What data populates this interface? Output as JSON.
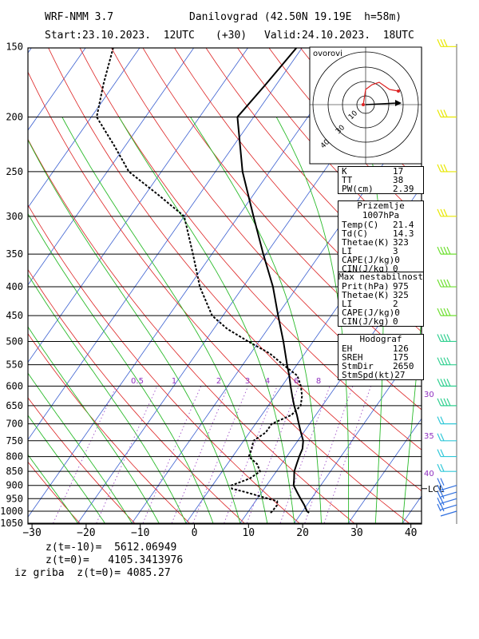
{
  "header": {
    "model": "WRF-NMM 3.7",
    "location": "Danilovgrad (42.50N 19.19E  h=58m)",
    "start": "Start:23.10.2023.  12UTC",
    "offset": "(+30)",
    "valid": "Valid:24.10.2023.  18UTC"
  },
  "hodograph_label": "ovorovi",
  "indices_box": {
    "rows": [
      [
        "K",
        "17"
      ],
      [
        "TT",
        "38"
      ],
      [
        "PW(cm)",
        "2.39"
      ]
    ]
  },
  "surface_box": {
    "title": "Prizemlje 1007hPa",
    "rows": [
      [
        "Temp(C)",
        "21.4"
      ],
      [
        "Td(C)",
        "14.3"
      ],
      [
        "Thetae(K)",
        "323"
      ],
      [
        "LI",
        "3"
      ],
      [
        "CAPE(J/kg)",
        "0"
      ],
      [
        "CIN(J/kg)",
        "0"
      ]
    ]
  },
  "unstable_box": {
    "title": "Max nestabilnost",
    "rows": [
      [
        "Prit(hPa)",
        "975"
      ],
      [
        "Thetae(K)",
        "325"
      ],
      [
        "LI",
        "2"
      ],
      [
        "CAPE(J/kg)",
        "0"
      ],
      [
        "CIN(J/kg)",
        "0"
      ]
    ]
  },
  "hodo_box": {
    "title": "Hodograf",
    "rows": [
      [
        "EH",
        "126"
      ],
      [
        "SREH",
        "175"
      ],
      [
        "StmDir",
        "2650"
      ],
      [
        "StmSpd(kt)",
        "27"
      ]
    ]
  },
  "footer": {
    "line1": "z(t=-10)=  5612.06949",
    "line2": "z(t=0)=   4105.3413976",
    "line3": "iz griba  z(t=0)= 4085.27"
  },
  "lcl_label": "LCL",
  "chart_data": {
    "type": "line",
    "xlabel": "",
    "ylabel": "",
    "xlim": [
      -30,
      42
    ],
    "ylim": [
      1050,
      150
    ],
    "x_ticks": [
      -30,
      -20,
      -10,
      0,
      10,
      20,
      30,
      40
    ],
    "pressure_ticks": [
      150,
      200,
      250,
      300,
      350,
      400,
      450,
      500,
      550,
      600,
      650,
      700,
      750,
      800,
      850,
      900,
      950,
      1000,
      1050
    ],
    "mixing_ratio_labels": [
      "0.5",
      "1",
      "2",
      "3",
      "4",
      "6",
      "8"
    ],
    "thetae_labels": [
      "30",
      "35",
      "40"
    ],
    "series": [
      {
        "type": "temperature",
        "points": [
          [
            1007,
            21.4
          ],
          [
            1000,
            20.8
          ],
          [
            975,
            19.5
          ],
          [
            950,
            18.0
          ],
          [
            925,
            16.5
          ],
          [
            900,
            15.0
          ],
          [
            875,
            14.2
          ],
          [
            850,
            13.3
          ],
          [
            825,
            12.8
          ],
          [
            800,
            12.3
          ],
          [
            775,
            11.9
          ],
          [
            750,
            11.0
          ],
          [
            725,
            9.5
          ],
          [
            700,
            8.0
          ],
          [
            675,
            6.5
          ],
          [
            650,
            4.8
          ],
          [
            625,
            3.2
          ],
          [
            600,
            1.6
          ],
          [
            575,
            0.0
          ],
          [
            550,
            -1.8
          ],
          [
            500,
            -5.5
          ],
          [
            450,
            -9.8
          ],
          [
            400,
            -14.5
          ],
          [
            350,
            -20.5
          ],
          [
            300,
            -27.2
          ],
          [
            250,
            -35.0
          ],
          [
            200,
            -43.0
          ],
          [
            175,
            -42.0
          ],
          [
            150,
            -41.0
          ]
        ]
      },
      {
        "type": "dewpoint",
        "points": [
          [
            1007,
            14.3
          ],
          [
            1000,
            14.4
          ],
          [
            975,
            14.5
          ],
          [
            960,
            14.0
          ],
          [
            950,
            12.0
          ],
          [
            925,
            7.0
          ],
          [
            912,
            4.0
          ],
          [
            900,
            3.5
          ],
          [
            875,
            6.0
          ],
          [
            850,
            7.0
          ],
          [
            825,
            5.5
          ],
          [
            800,
            3.0
          ],
          [
            775,
            2.5
          ],
          [
            750,
            1.8
          ],
          [
            725,
            3.0
          ],
          [
            700,
            3.0
          ],
          [
            675,
            5.5
          ],
          [
            650,
            6.0
          ],
          [
            625,
            5.0
          ],
          [
            600,
            3.5
          ],
          [
            575,
            1.5
          ],
          [
            550,
            -2.5
          ],
          [
            525,
            -6.5
          ],
          [
            500,
            -12.0
          ],
          [
            475,
            -17.5
          ],
          [
            450,
            -22.0
          ],
          [
            400,
            -28.0
          ],
          [
            350,
            -33.5
          ],
          [
            300,
            -40.0
          ],
          [
            275,
            -47.5
          ],
          [
            250,
            -56.0
          ],
          [
            225,
            -62.0
          ],
          [
            200,
            -69.0
          ],
          [
            175,
            -72.0
          ],
          [
            150,
            -75.0
          ]
        ]
      }
    ],
    "wind_barb_levels": [
      150,
      200,
      250,
      300,
      350,
      400,
      450,
      500,
      550,
      600,
      650,
      700,
      750,
      800,
      850,
      900,
      925,
      950,
      975,
      1000
    ],
    "hodograph_rings": [
      10,
      20,
      30,
      40
    ]
  }
}
